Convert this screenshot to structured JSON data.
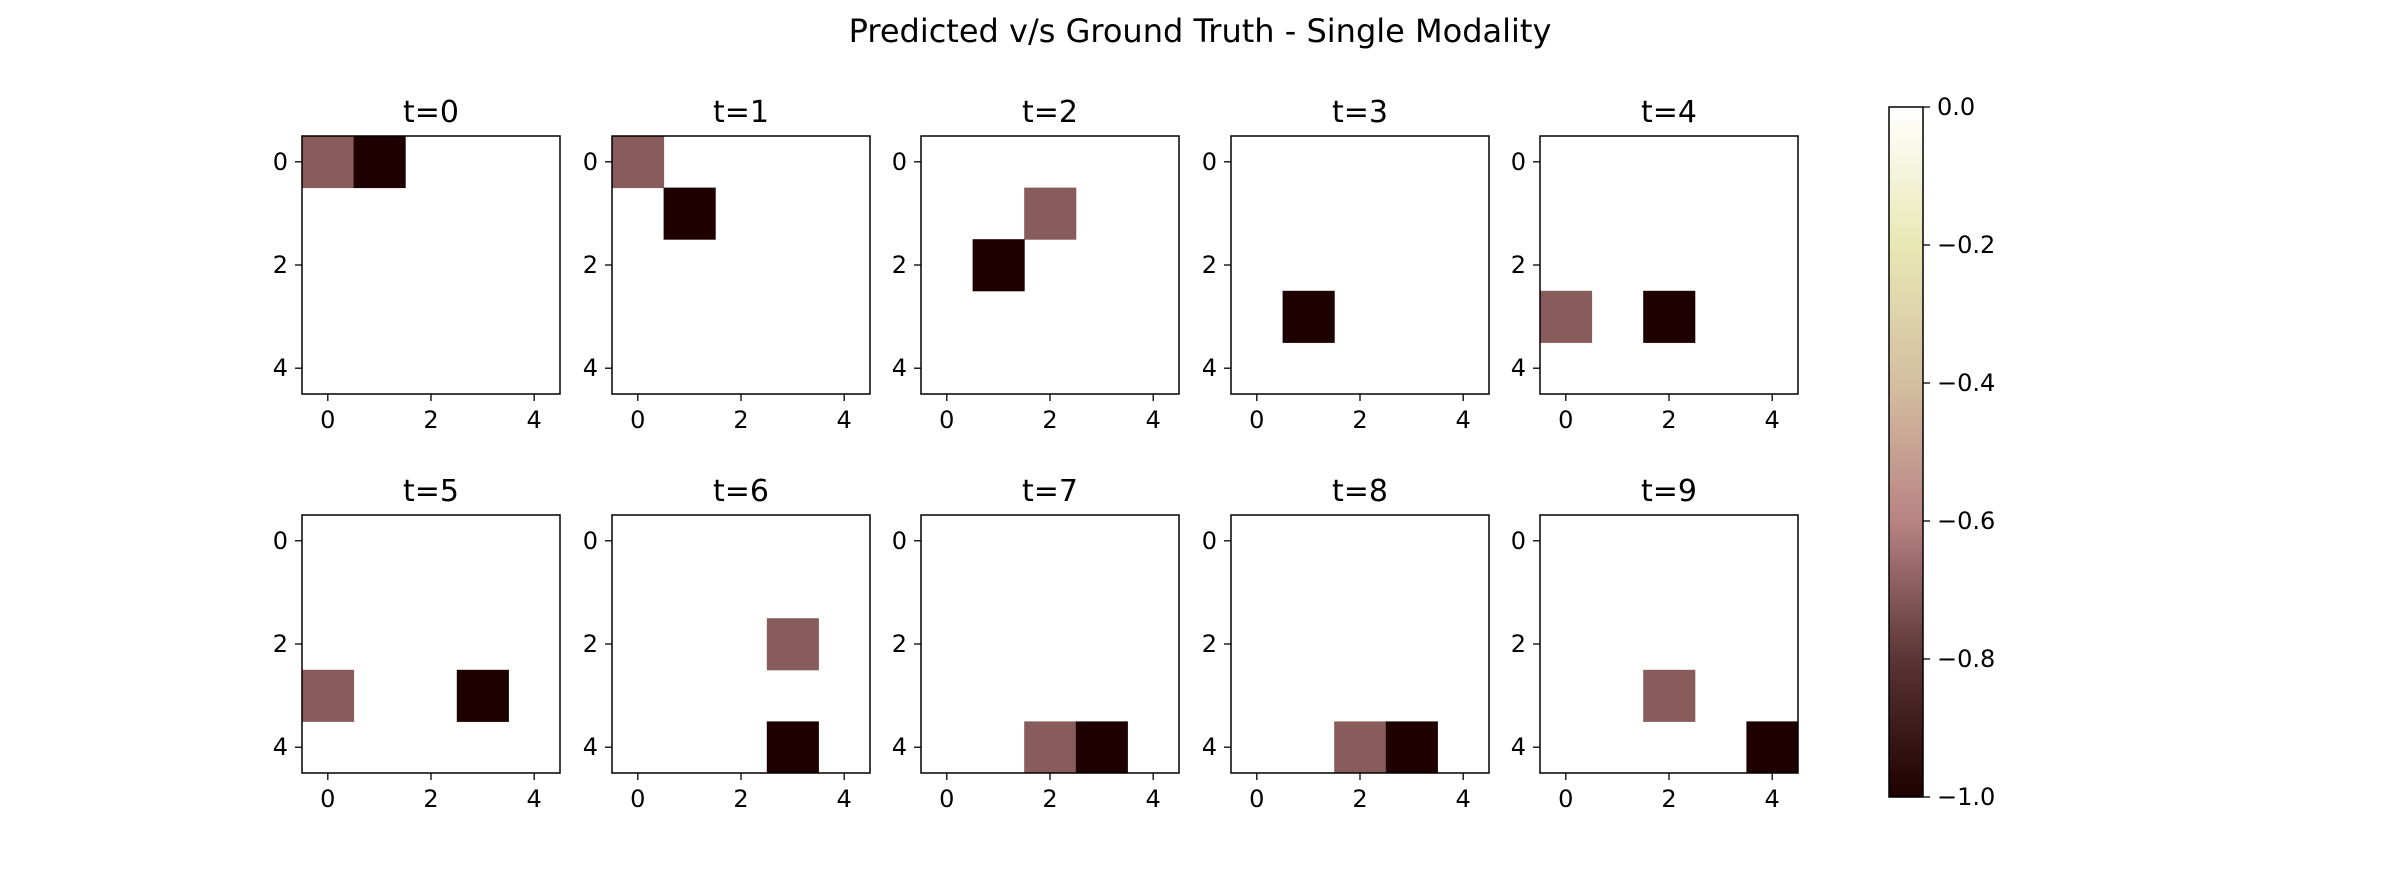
{
  "figure": {
    "suptitle": "Predicted v/s Ground Truth - Single Modality"
  },
  "chart_data": {
    "type": "heatmap",
    "title": "Predicted v/s Ground Truth - Single Modality",
    "grid": false,
    "layout": "2 rows x 5 columns of 5x5 heatmaps",
    "xticks": [
      "0",
      "2",
      "4"
    ],
    "yticks": [
      "0",
      "2",
      "4"
    ],
    "xlim": [
      -0.5,
      4.5
    ],
    "ylim": [
      4.5,
      -0.5
    ],
    "colormap": {
      "name": "pink",
      "vmin": -1.0,
      "vmax": 0.0,
      "stops": [
        "#1e0000",
        "#5a3535",
        "#b88383",
        "#d4bfa0",
        "#e8e8b4",
        "#ffffff"
      ],
      "ticks": [
        "0.0",
        "−0.2",
        "−0.4",
        "−0.6",
        "−0.8",
        "−1.0"
      ]
    },
    "empty_value": 0.0,
    "panels": [
      {
        "title": "t=0",
        "cells": [
          {
            "row": 0,
            "col": 0,
            "value": -0.7
          },
          {
            "row": 0,
            "col": 1,
            "value": -1.0
          }
        ]
      },
      {
        "title": "t=1",
        "cells": [
          {
            "row": 0,
            "col": 0,
            "value": -0.7
          },
          {
            "row": 1,
            "col": 1,
            "value": -1.0
          }
        ]
      },
      {
        "title": "t=2",
        "cells": [
          {
            "row": 1,
            "col": 2,
            "value": -0.7
          },
          {
            "row": 2,
            "col": 1,
            "value": -1.0
          }
        ]
      },
      {
        "title": "t=3",
        "cells": [
          {
            "row": 3,
            "col": 1,
            "value": -1.0
          }
        ]
      },
      {
        "title": "t=4",
        "cells": [
          {
            "row": 3,
            "col": 0,
            "value": -0.7
          },
          {
            "row": 3,
            "col": 2,
            "value": -1.0
          }
        ]
      },
      {
        "title": "t=5",
        "cells": [
          {
            "row": 3,
            "col": 0,
            "value": -0.7
          },
          {
            "row": 3,
            "col": 3,
            "value": -1.0
          }
        ]
      },
      {
        "title": "t=6",
        "cells": [
          {
            "row": 2,
            "col": 3,
            "value": -0.7
          },
          {
            "row": 4,
            "col": 3,
            "value": -1.0
          }
        ]
      },
      {
        "title": "t=7",
        "cells": [
          {
            "row": 4,
            "col": 2,
            "value": -0.7
          },
          {
            "row": 4,
            "col": 3,
            "value": -1.0
          }
        ]
      },
      {
        "title": "t=8",
        "cells": [
          {
            "row": 4,
            "col": 2,
            "value": -0.7
          },
          {
            "row": 4,
            "col": 3,
            "value": -1.0
          }
        ]
      },
      {
        "title": "t=9",
        "cells": [
          {
            "row": 3,
            "col": 2,
            "value": -0.7
          },
          {
            "row": 4,
            "col": 4,
            "value": -1.0
          }
        ]
      }
    ]
  }
}
